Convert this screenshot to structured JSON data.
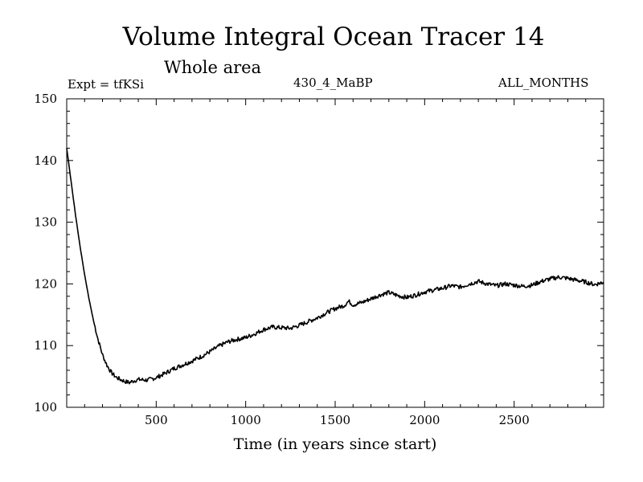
{
  "header": {
    "title": "Volume Integral Ocean Tracer 14",
    "subtitle": "Whole area",
    "experiment": "Expt = tfKSi",
    "run_label": "430_4_MaBP",
    "months_label": "ALL_MONTHS"
  },
  "chart_data": {
    "type": "line",
    "title": "Volume Integral Ocean Tracer 14",
    "subtitle": "Whole area",
    "xlabel": "Time (in years since start)",
    "ylabel": "",
    "xlim": [
      0,
      3000
    ],
    "ylim": [
      100,
      150
    ],
    "x_ticks": [
      500,
      1000,
      1500,
      2000,
      2500
    ],
    "y_ticks": [
      100,
      110,
      120,
      130,
      140,
      150
    ],
    "grid": false,
    "series": [
      {
        "name": "Tracer 14",
        "x": [
          0,
          25,
          50,
          75,
          100,
          125,
          150,
          175,
          200,
          225,
          250,
          275,
          300,
          325,
          350,
          375,
          400,
          450,
          500,
          550,
          600,
          650,
          700,
          750,
          800,
          850,
          900,
          950,
          1000,
          1050,
          1100,
          1150,
          1200,
          1250,
          1300,
          1350,
          1400,
          1450,
          1500,
          1550,
          1575,
          1600,
          1650,
          1700,
          1750,
          1800,
          1850,
          1900,
          1950,
          2000,
          2050,
          2100,
          2150,
          2200,
          2250,
          2300,
          2350,
          2400,
          2450,
          2500,
          2550,
          2600,
          2650,
          2700,
          2750,
          2800,
          2850,
          2900,
          2950,
          3000
        ],
        "values": [
          142.0,
          136.5,
          131.0,
          126.0,
          121.5,
          117.5,
          114.0,
          111.0,
          108.5,
          106.8,
          105.6,
          104.9,
          104.5,
          104.2,
          104.0,
          104.3,
          104.5,
          104.4,
          104.8,
          105.5,
          106.3,
          106.9,
          107.5,
          108.2,
          109.0,
          109.9,
          110.6,
          111.0,
          111.3,
          111.9,
          112.6,
          113.0,
          112.9,
          112.8,
          113.3,
          113.9,
          114.5,
          115.3,
          116.0,
          116.5,
          117.2,
          116.6,
          117.0,
          117.6,
          118.2,
          118.6,
          118.1,
          117.8,
          118.2,
          118.7,
          119.0,
          119.3,
          119.7,
          119.5,
          120.0,
          120.4,
          120.0,
          119.7,
          120.0,
          119.8,
          119.6,
          119.8,
          120.4,
          120.8,
          121.1,
          120.9,
          120.6,
          120.3,
          119.9,
          120.3
        ]
      }
    ]
  }
}
